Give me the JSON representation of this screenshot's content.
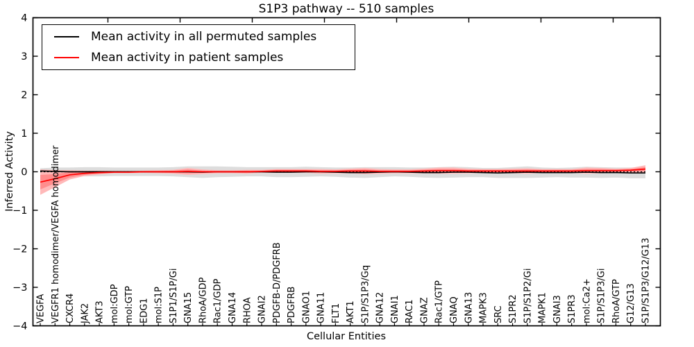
{
  "chart_data": {
    "type": "line",
    "title": "S1P3 pathway -- 510 samples",
    "xlabel": "Cellular Entities",
    "ylabel": "Inferred Activity",
    "ylim": [
      -4,
      4
    ],
    "yticks": [
      4,
      3,
      2,
      1,
      0,
      -1,
      -2,
      -3,
      -4
    ],
    "grid": false,
    "legend_position": "upper-left",
    "categories": [
      "VEGFA",
      "VEGFR1 homodimer/VEGFA homodimer",
      "CXCR4",
      "JAK2",
      "AKT3",
      "mol:GDP",
      "mol:GTP",
      "EDG1",
      "mol:S1P",
      "S1P1/S1P/Gi",
      "GNA15",
      "RhoA/GDP",
      "Rac1/GDP",
      "GNA14",
      "RHOA",
      "GNAI2",
      "PDGFB-D/PDGFRB",
      "PDGFRB",
      "GNAO1",
      "GNA11",
      "FLT1",
      "AKT1",
      "S1P/S1P3/Gq",
      "GNA12",
      "GNAI1",
      "RAC1",
      "GNAZ",
      "Rac1/GTP",
      "GNAQ",
      "GNA13",
      "MAPK3",
      "SRC",
      "S1PR2",
      "S1P/S1P2/Gi",
      "MAPK1",
      "GNAI3",
      "S1PR3",
      "mol:Ca2+",
      "S1P/S1P3/Gi",
      "RhoA/GTP",
      "G12/G13",
      "S1P/S1P3/G12/G13"
    ],
    "series": [
      {
        "name": "Mean activity in all permuted samples",
        "color": "#000000",
        "band_color": "#dddddd",
        "mean": [
          0.02,
          0.01,
          0,
          0,
          0,
          0,
          0,
          0,
          0,
          0,
          0,
          -0.01,
          0,
          0,
          0,
          0,
          -0.01,
          -0.01,
          0,
          0,
          -0.01,
          -0.02,
          -0.02,
          -0.01,
          0,
          -0.01,
          -0.02,
          -0.02,
          -0.01,
          -0.01,
          -0.02,
          -0.03,
          -0.02,
          -0.01,
          -0.02,
          -0.02,
          -0.02,
          -0.01,
          -0.02,
          -0.02,
          -0.03,
          -0.03
        ],
        "std": [
          0.07,
          0.1,
          0.11,
          0.12,
          0.12,
          0.11,
          0.11,
          0.11,
          0.11,
          0.12,
          0.14,
          0.15,
          0.14,
          0.13,
          0.12,
          0.12,
          0.13,
          0.13,
          0.13,
          0.12,
          0.12,
          0.13,
          0.14,
          0.13,
          0.12,
          0.12,
          0.13,
          0.14,
          0.14,
          0.13,
          0.12,
          0.13,
          0.14,
          0.15,
          0.13,
          0.12,
          0.13,
          0.14,
          0.14,
          0.13,
          0.14,
          0.14
        ]
      },
      {
        "name": "Mean activity in patient samples",
        "color": "#ff0000",
        "band_color": "#ffb9b9",
        "band_inner_color": "#ff8d8d",
        "mean": [
          -0.27,
          -0.18,
          -0.08,
          -0.04,
          -0.02,
          -0.01,
          -0.01,
          0,
          0,
          0,
          0.01,
          0,
          0,
          0,
          0,
          0.01,
          0.02,
          0.02,
          0.02,
          0.01,
          0.01,
          0.02,
          0.02,
          0.01,
          0.01,
          0.01,
          0.02,
          0.03,
          0.03,
          0.02,
          0.02,
          0.02,
          0.02,
          0.02,
          0.02,
          0.02,
          0.02,
          0.03,
          0.03,
          0.03,
          0.04,
          0.07
        ],
        "std": [
          0.33,
          0.22,
          0.12,
          0.07,
          0.05,
          0.03,
          0.03,
          0.03,
          0.04,
          0.05,
          0.09,
          0.06,
          0.04,
          0.04,
          0.05,
          0.04,
          0.05,
          0.05,
          0.05,
          0.06,
          0.05,
          0.06,
          0.08,
          0.06,
          0.05,
          0.05,
          0.06,
          0.08,
          0.08,
          0.06,
          0.05,
          0.05,
          0.06,
          0.07,
          0.05,
          0.05,
          0.05,
          0.08,
          0.07,
          0.05,
          0.06,
          0.1
        ],
        "std_inner": [
          0.19,
          0.12,
          0.07,
          0.04,
          0.03,
          0.02,
          0.02,
          0.02,
          0.02,
          0.03,
          0.05,
          0.03,
          0.02,
          0.02,
          0.03,
          0.02,
          0.03,
          0.03,
          0.03,
          0.03,
          0.03,
          0.03,
          0.04,
          0.03,
          0.03,
          0.03,
          0.03,
          0.04,
          0.04,
          0.03,
          0.03,
          0.03,
          0.03,
          0.04,
          0.03,
          0.03,
          0.03,
          0.04,
          0.04,
          0.03,
          0.03,
          0.05
        ]
      }
    ],
    "zero_reference_line": {
      "value": 0,
      "style": "dotted",
      "color": "#000000"
    }
  }
}
